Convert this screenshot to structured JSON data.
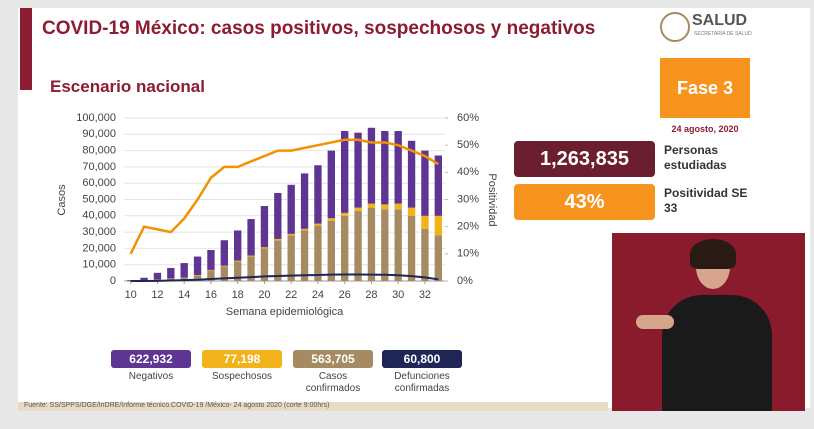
{
  "header": {
    "title": "COVID-19 México: casos positivos, sospechosos y negativos",
    "subtitle": "Escenario nacional",
    "logo": "SALUD",
    "logo_sub": "SECRETARÍA DE SALUD"
  },
  "phase": {
    "label": "Fase 3",
    "date": "24 agosto, 2020"
  },
  "stats": [
    {
      "value": "1,263,835",
      "label": "Personas estudiadas"
    },
    {
      "value": "43%",
      "label": "Positividad SE 33"
    }
  ],
  "chart_data": {
    "type": "bar",
    "stacked": true,
    "xlabel": "Semana epidemiológica",
    "ylabel": "Casos",
    "x": [
      10,
      11,
      12,
      13,
      14,
      15,
      16,
      17,
      18,
      19,
      20,
      21,
      22,
      23,
      24,
      25,
      26,
      27,
      28,
      29,
      30,
      31,
      32,
      33
    ],
    "xlim": [
      9.5,
      33.5
    ],
    "xticks": [
      10,
      12,
      14,
      16,
      18,
      20,
      22,
      24,
      26,
      28,
      30,
      32
    ],
    "ylim": [
      0,
      100000
    ],
    "yticks": [
      0,
      {
        "value": 10000,
        "label": "10,000"
      },
      {
        "value": 20000,
        "label": "20,000"
      },
      {
        "value": 30000,
        "label": "30,000"
      },
      {
        "value": 40000,
        "label": "40,000"
      },
      {
        "value": 50000,
        "label": "50,000"
      },
      {
        "value": 60000,
        "label": "60,000"
      },
      {
        "value": 70000,
        "label": "70,000"
      },
      {
        "value": 80000,
        "label": "80,000"
      },
      {
        "value": 90000,
        "label": "90,000"
      },
      {
        "value": 100000,
        "label": "100,000"
      }
    ],
    "y2lim": [
      0,
      60
    ],
    "y2ticks": [
      {
        "value": 0,
        "label": "0%"
      },
      {
        "value": 10,
        "label": "10%"
      },
      {
        "value": 20,
        "label": "20%"
      },
      {
        "value": 30,
        "label": "30%"
      },
      {
        "value": 40,
        "label": "40%"
      },
      {
        "value": 50,
        "label": "50%"
      },
      {
        "value": 60,
        "label": "60%"
      }
    ],
    "series": [
      {
        "name": "Casos confirmados",
        "total": "563,705",
        "color": "#a68b62",
        "mark": "bar",
        "values": [
          50,
          400,
          1000,
          1500,
          2000,
          3500,
          6500,
          9000,
          12000,
          15000,
          20000,
          25000,
          28000,
          31000,
          34000,
          37000,
          40000,
          43000,
          45000,
          44000,
          44000,
          40000,
          32000,
          28000
        ]
      },
      {
        "name": "Sospechosos",
        "total": "77,198",
        "color": "#f2b21b",
        "mark": "bar",
        "values": [
          0,
          0,
          0,
          100,
          100,
          200,
          300,
          400,
          500,
          600,
          700,
          800,
          900,
          1000,
          1200,
          1500,
          1800,
          2000,
          2500,
          3000,
          3500,
          5000,
          8000,
          12000
        ]
      },
      {
        "name": "Negativos",
        "total": "622,932",
        "color": "#5e3592",
        "mark": "bar",
        "values": [
          450,
          1600,
          4000,
          6400,
          8900,
          11300,
          12200,
          15600,
          18500,
          22400,
          25300,
          28200,
          30100,
          34000,
          35800,
          41500,
          50200,
          46000,
          46500,
          45000,
          44500,
          41000,
          40000,
          37000
        ]
      },
      {
        "name": "Defunciones confirmadas",
        "total": "60,800",
        "color": "#1d2656",
        "mark": "line",
        "values": [
          0,
          20,
          100,
          300,
          500,
          800,
          1200,
          1600,
          2000,
          2400,
          2800,
          3100,
          3300,
          3500,
          3700,
          3900,
          4000,
          4000,
          3900,
          3800,
          3500,
          3000,
          2200,
          1000
        ]
      },
      {
        "name": "Positividad",
        "color": "#f39200",
        "mark": "line",
        "axis": "y2",
        "values": [
          10,
          20,
          19,
          18,
          23,
          30,
          38,
          42,
          42,
          44,
          46,
          48,
          48,
          49,
          50,
          51,
          52,
          52,
          51,
          51,
          50,
          48,
          46,
          43
        ]
      }
    ]
  },
  "source": "Fuente: SS/SPPS/DGE/InDRE/Informe técnico.COVID-19 /México- 24 agosto 2020 (corte 9:00hrs)"
}
